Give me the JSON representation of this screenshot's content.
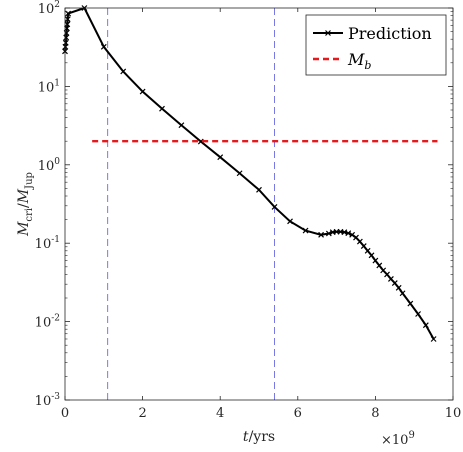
{
  "chart_data": {
    "type": "line",
    "xlabel": "t/yrs",
    "ylabel": "M_cri/M_Jup",
    "x_exponent_label": "×10^9",
    "x_scale": 1000000000,
    "xlim": [
      0,
      10
    ],
    "ylim": [
      0.001,
      100
    ],
    "yscale": "log",
    "grid": false,
    "legend_position": "top-right",
    "x_ticks": [
      "0",
      "2",
      "4",
      "6",
      "8",
      "10"
    ],
    "y_ticks": [
      {
        "value": 0.001,
        "base": "10",
        "exp": "-3"
      },
      {
        "value": 0.01,
        "base": "10",
        "exp": "-2"
      },
      {
        "value": 0.1,
        "base": "10",
        "exp": "-1"
      },
      {
        "value": 1,
        "base": "10",
        "exp": "0"
      },
      {
        "value": 10,
        "base": "10",
        "exp": "1"
      },
      {
        "value": 100,
        "base": "10",
        "exp": "2"
      }
    ],
    "series": [
      {
        "name": "Prediction",
        "color": "#000000",
        "marker": "x",
        "x": [
          0.0,
          0.01,
          0.02,
          0.03,
          0.04,
          0.05,
          0.06,
          0.07,
          0.08,
          0.5,
          1.0,
          1.5,
          2.0,
          2.5,
          3.0,
          3.5,
          4.0,
          4.5,
          5.0,
          5.4,
          5.8,
          6.2,
          6.6,
          6.8,
          6.9,
          7.0,
          7.1,
          7.2,
          7.3,
          7.4,
          7.5,
          7.6,
          7.7,
          7.8,
          7.9,
          8.0,
          8.1,
          8.2,
          8.3,
          8.4,
          8.5,
          8.6,
          8.7,
          8.9,
          9.1,
          9.3,
          9.5
        ],
        "y": [
          28,
          32,
          36,
          42,
          48,
          55,
          62,
          72,
          85,
          100,
          32,
          15.5,
          8.6,
          5.2,
          3.2,
          1.98,
          1.25,
          0.78,
          0.48,
          0.29,
          0.19,
          0.145,
          0.128,
          0.133,
          0.138,
          0.14,
          0.14,
          0.138,
          0.134,
          0.128,
          0.118,
          0.105,
          0.092,
          0.08,
          0.07,
          0.06,
          0.052,
          0.045,
          0.04,
          0.035,
          0.031,
          0.027,
          0.023,
          0.017,
          0.0125,
          0.009,
          0.006
        ]
      },
      {
        "name": "M_b",
        "color": "#e6191c",
        "dashed": true,
        "x": [
          0.7,
          9.6
        ],
        "y": [
          2.0,
          2.0
        ]
      }
    ],
    "vertical_lines": [
      {
        "x": 1.1,
        "color": "#6a6ae6"
      },
      {
        "x": 5.4,
        "color": "#6a6ae6"
      }
    ]
  }
}
